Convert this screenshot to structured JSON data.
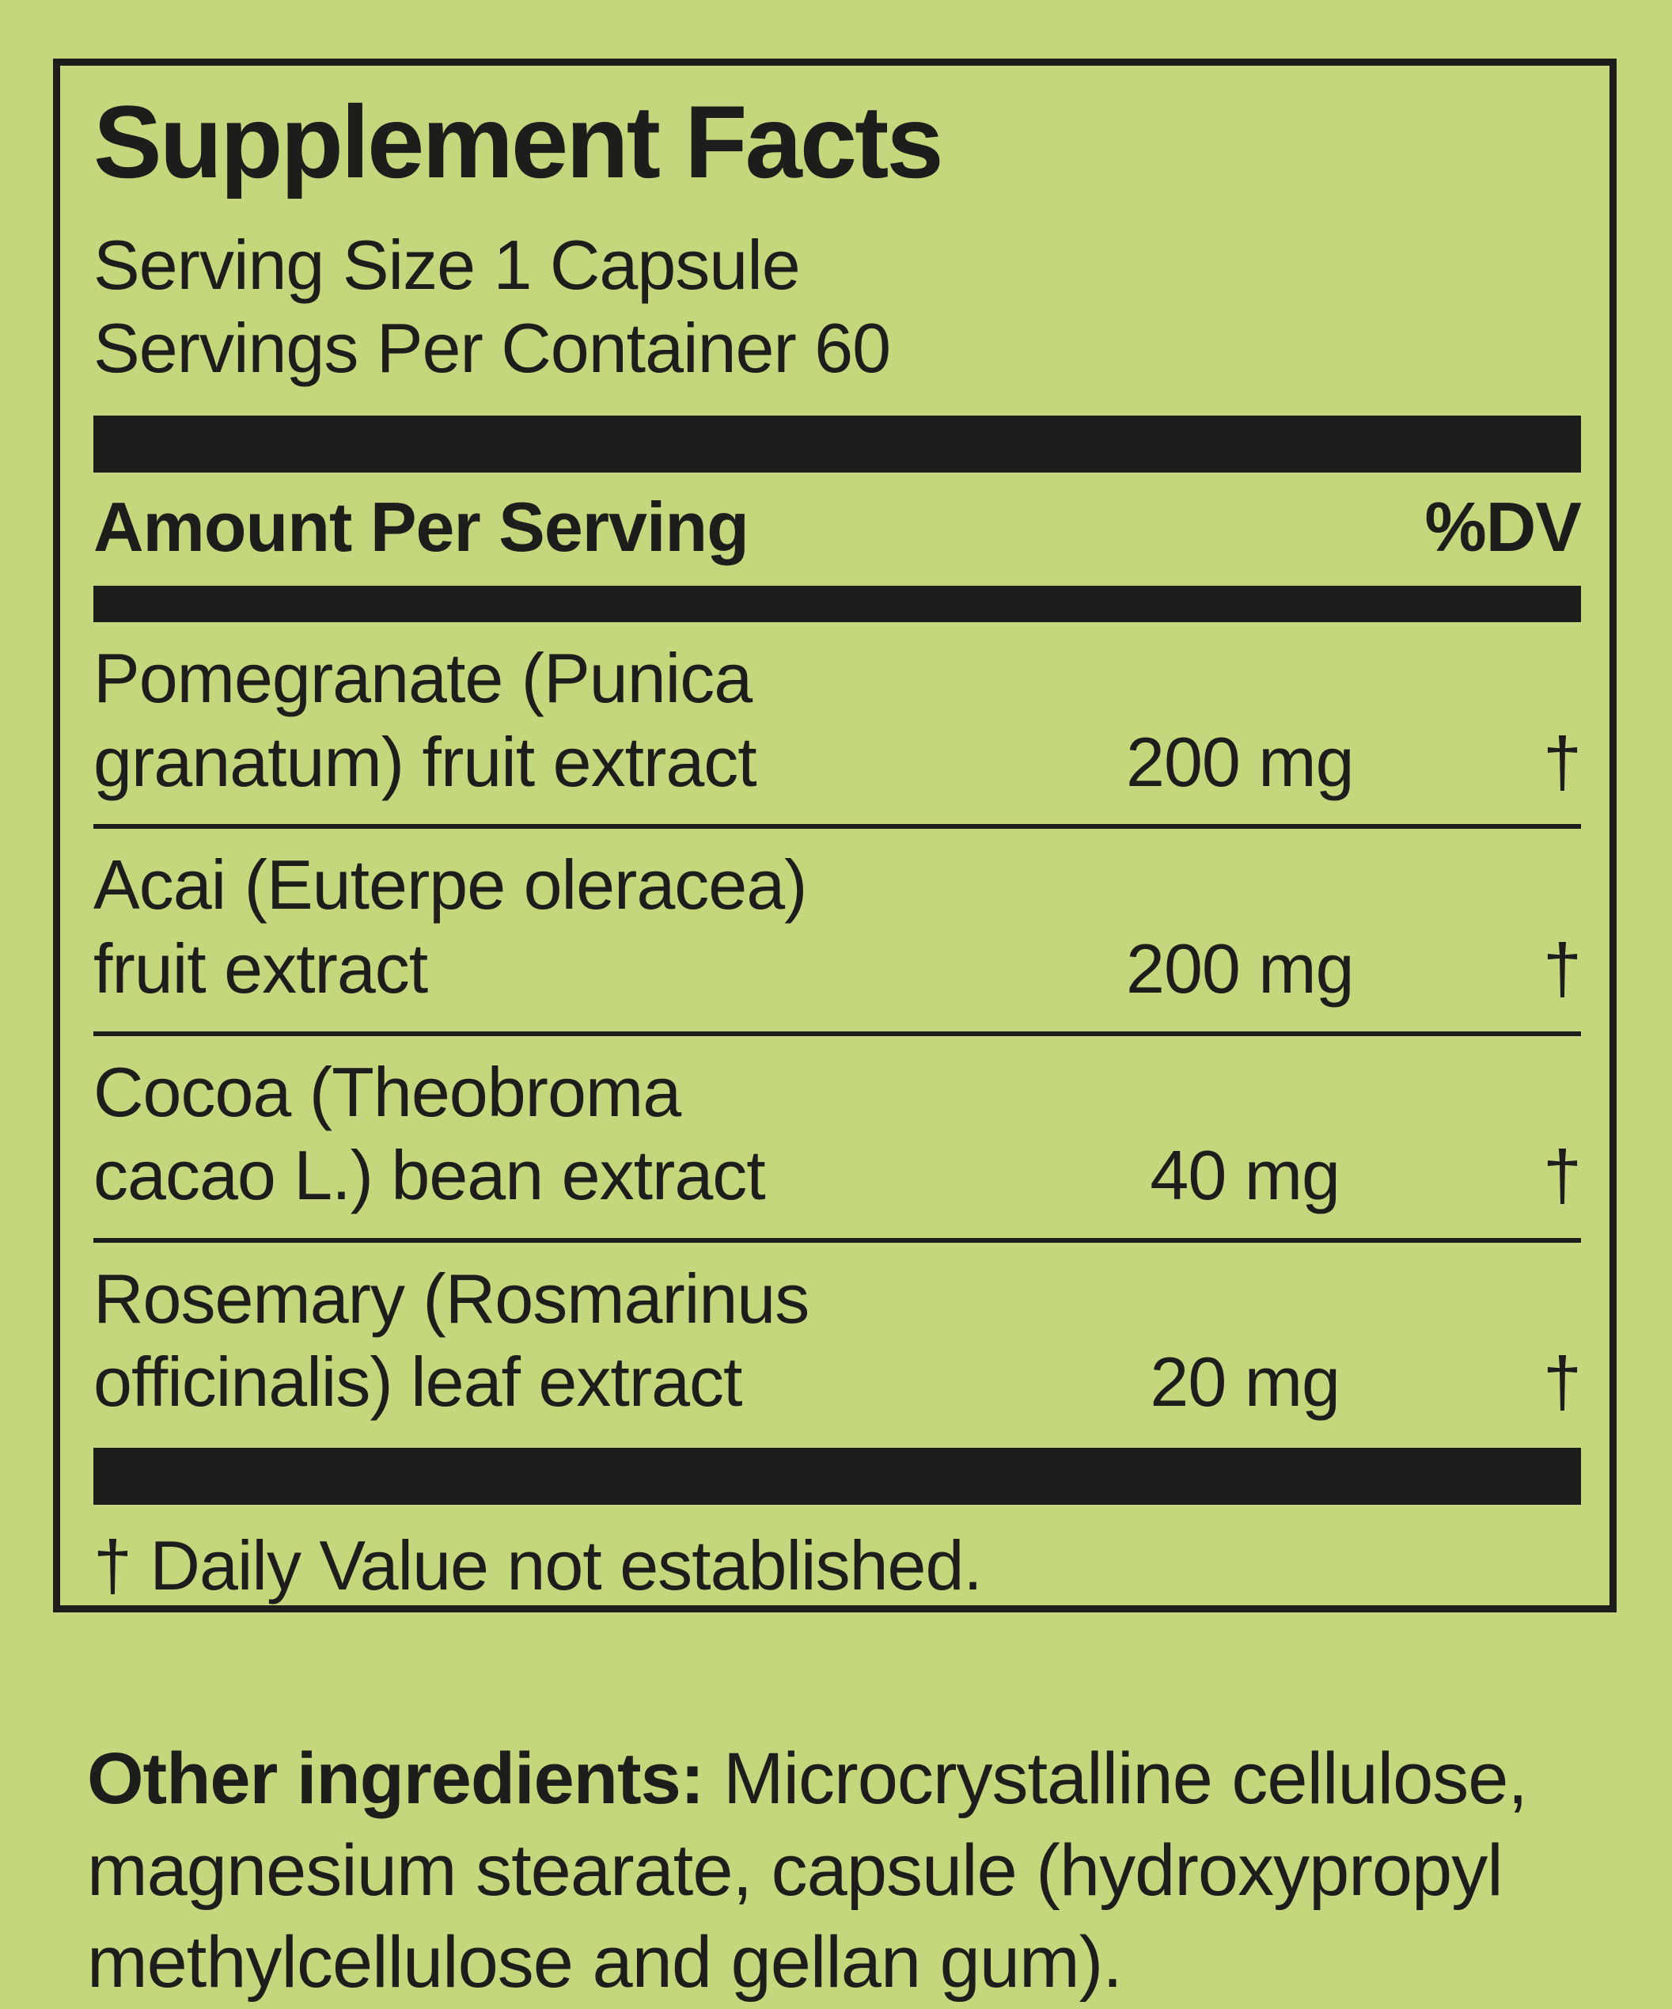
{
  "panel": {
    "title": "Supplement Facts",
    "serving_size": "Serving Size 1 Capsule",
    "servings_per_container": "Servings Per Container 60",
    "header": {
      "amount_label": "Amount Per Serving",
      "dv_label": "%DV"
    },
    "rows": [
      {
        "name": "Pomegranate (Punica\ngranatum) fruit extract",
        "amount": "200 mg",
        "dv": "†"
      },
      {
        "name": "Acai (Euterpe oleracea)\nfruit extract",
        "amount": "200 mg",
        "dv": "†"
      },
      {
        "name": "Cocoa (Theobroma\ncacao L.) bean extract",
        "amount": "40 mg",
        "dv": "†"
      },
      {
        "name": "Rosemary (Rosmarinus\nofficinalis) leaf extract",
        "amount": "20 mg",
        "dv": "†"
      }
    ],
    "footnote": "† Daily Value not established."
  },
  "other_ingredients": {
    "label": "Other ingredients:",
    "text": " Microcrystalline cellulose,\nmagnesium stearate, capsule (hydroxypropyl\nmethylcellulose and gellan gum)."
  },
  "colors": {
    "background": "#c4d77c",
    "ink": "#1d1d1b"
  }
}
